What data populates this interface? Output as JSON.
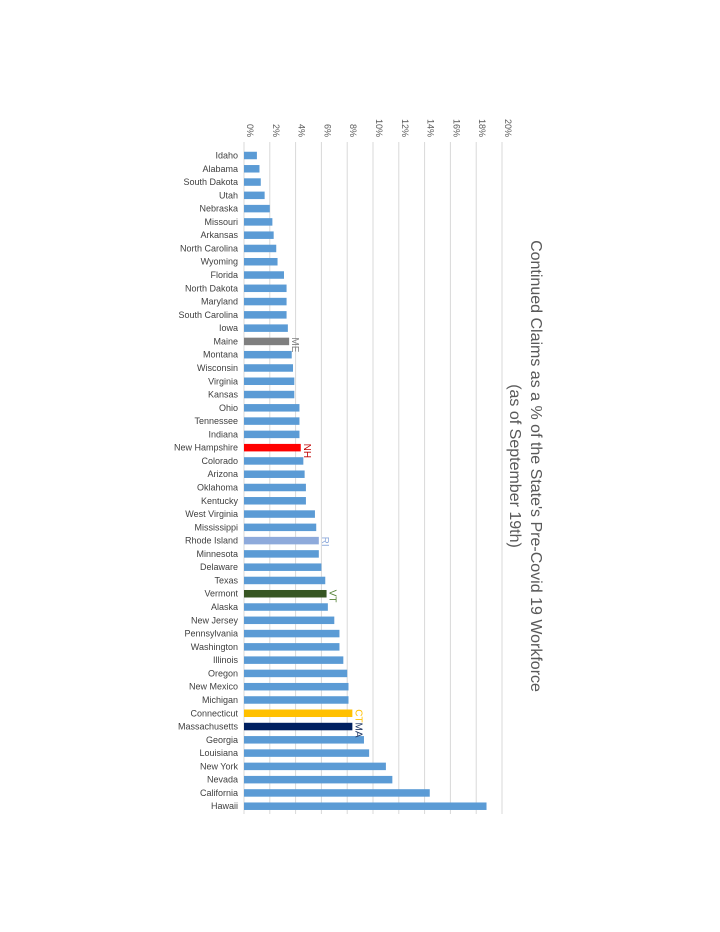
{
  "chart_data": {
    "type": "bar",
    "orientation": "horizontal",
    "title": "Continued Claims as a % of the State's Pre-Covid 19 Workforce",
    "subtitle": "(as of September 19th)",
    "xlim": [
      0,
      20
    ],
    "x_ticks": [
      "0%",
      "2%",
      "4%",
      "6%",
      "8%",
      "10%",
      "12%",
      "14%",
      "16%",
      "18%",
      "20%"
    ],
    "grid": true,
    "default_color": "#5b9bd5",
    "categories": [
      "Idaho",
      "Alabama",
      "South Dakota",
      "Utah",
      "Nebraska",
      "Missouri",
      "Arkansas",
      "North Carolina",
      "Wyoming",
      "Florida",
      "North Dakota",
      "Maryland",
      "South Carolina",
      "Iowa",
      "Maine",
      "Montana",
      "Wisconsin",
      "Virginia",
      "Kansas",
      "Ohio",
      "Tennessee",
      "Indiana",
      "New Hampshire",
      "Colorado",
      "Arizona",
      "Oklahoma",
      "Kentucky",
      "West Virginia",
      "Mississippi",
      "Rhode Island",
      "Minnesota",
      "Delaware",
      "Texas",
      "Vermont",
      "Alaska",
      "New Jersey",
      "Pennsylvania",
      "Washington",
      "Illinois",
      "Oregon",
      "New Mexico",
      "Michigan",
      "Connecticut",
      "Massachusetts",
      "Georgia",
      "Louisiana",
      "New York",
      "Nevada",
      "California",
      "Hawaii"
    ],
    "values": [
      1.0,
      1.2,
      1.3,
      1.6,
      2.0,
      2.2,
      2.3,
      2.5,
      2.6,
      3.1,
      3.3,
      3.3,
      3.3,
      3.4,
      3.5,
      3.7,
      3.8,
      3.9,
      3.9,
      4.3,
      4.3,
      4.3,
      4.4,
      4.6,
      4.7,
      4.8,
      4.8,
      5.5,
      5.6,
      5.8,
      5.8,
      6.0,
      6.3,
      6.4,
      6.5,
      7.0,
      7.4,
      7.4,
      7.7,
      8.0,
      8.1,
      8.1,
      8.4,
      8.4,
      9.3,
      9.7,
      11.0,
      11.5,
      14.4,
      18.8
    ],
    "highlights": [
      {
        "category": "Maine",
        "label": "ME",
        "color": "#7f7f7f",
        "label_color": "#7f7f7f"
      },
      {
        "category": "New Hampshire",
        "label": "NH",
        "color": "#ff0000",
        "label_color": "#c00000"
      },
      {
        "category": "Rhode Island",
        "label": "RI",
        "color": "#8eaadb",
        "label_color": "#8eaadb"
      },
      {
        "category": "Vermont",
        "label": "VT",
        "color": "#375623",
        "label_color": "#548235"
      },
      {
        "category": "Connecticut",
        "label": "CT",
        "color": "#ffc000",
        "label_color": "#ffc000"
      },
      {
        "category": "Massachusetts",
        "label": "MA",
        "color": "#002060",
        "label_color": "#203864"
      }
    ]
  }
}
